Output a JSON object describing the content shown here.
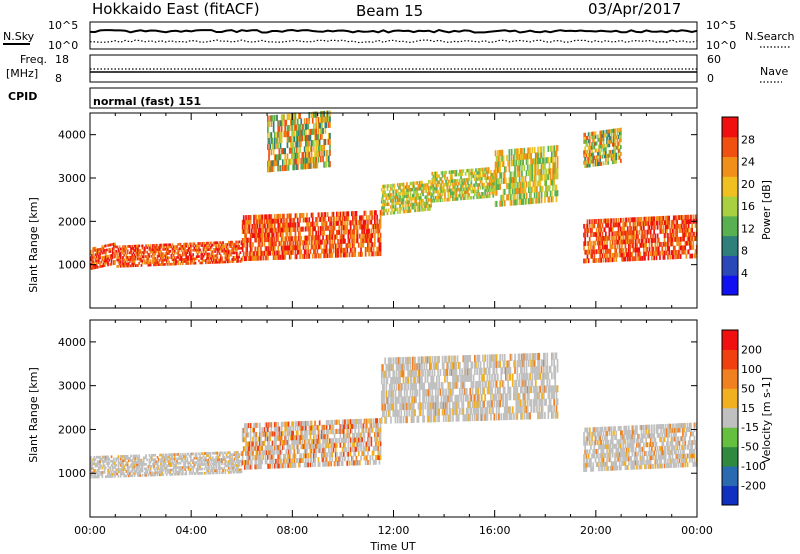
{
  "header": {
    "title": "Hokkaido East (fitACF)",
    "beam": "Beam 15",
    "date": "03/Apr/2017"
  },
  "top_panels": {
    "noise_left": "N.Sky",
    "noise_right": "N.Search",
    "noise_ticks_left": [
      "10^5",
      "10^0"
    ],
    "noise_ticks_right": [
      "10^5",
      "10^0"
    ],
    "freq_label": "Freq.",
    "freq_unit": "[MHz]",
    "freq_ticks": [
      "18",
      "8"
    ],
    "nave_label": "Nave",
    "nave_ticks": [
      "60",
      "0"
    ],
    "cpid_label": "CPID",
    "cpid_value": "normal (fast) 151"
  },
  "chart_data": [
    {
      "type": "heatmap",
      "title": "",
      "xlabel": "Time UT",
      "ylabel": "Slant Range [km]",
      "x_range": [
        "00:00",
        "24:00"
      ],
      "x_ticks": [
        "00:00",
        "04:00",
        "08:00",
        "12:00",
        "16:00",
        "20:00",
        "00:00"
      ],
      "y_range": [
        0,
        4500
      ],
      "y_ticks": [
        1000,
        2000,
        3000,
        4000
      ],
      "colorbar_label": "Power [dB]",
      "colorbar_ticks": [
        "28",
        "24",
        "20",
        "16",
        "12",
        "8",
        "4"
      ],
      "colors": [
        "#1010f0",
        "#2a48b8",
        "#2f7f7a",
        "#58b050",
        "#a8d040",
        "#f0c020",
        "#f09018",
        "#f05010",
        "#f01010"
      ],
      "bands": [
        {
          "t0": 0,
          "t1": 1,
          "r0": 950,
          "r1": 1450,
          "level": "strong"
        },
        {
          "t0": 1,
          "t1": 6,
          "r0": 1000,
          "r1": 1500,
          "level": "strong"
        },
        {
          "t0": 6,
          "t1": 11.5,
          "r0": 1150,
          "r1": 2200,
          "level": "strong"
        },
        {
          "t0": 11.5,
          "t1": 13.5,
          "r0": 2200,
          "r1": 2900,
          "level": "medium"
        },
        {
          "t0": 13.5,
          "t1": 16,
          "r0": 2500,
          "r1": 3200,
          "level": "medium"
        },
        {
          "t0": 16,
          "t1": 18.5,
          "r0": 2400,
          "r1": 3700,
          "level": "medium"
        },
        {
          "t0": 19.5,
          "t1": 24,
          "r0": 1100,
          "r1": 2100,
          "level": "strong"
        },
        {
          "t0": 7,
          "t1": 9.5,
          "r0": 3200,
          "r1": 4500,
          "level": "weak"
        },
        {
          "t0": 19.5,
          "t1": 21,
          "r0": 3300,
          "r1": 4100,
          "level": "weak"
        }
      ]
    },
    {
      "type": "heatmap",
      "title": "",
      "xlabel": "Time UT",
      "ylabel": "Slant Range [km]",
      "x_range": [
        "00:00",
        "24:00"
      ],
      "x_ticks": [
        "00:00",
        "04:00",
        "08:00",
        "12:00",
        "16:00",
        "20:00",
        "00:00"
      ],
      "y_range": [
        0,
        4500
      ],
      "y_ticks": [
        1000,
        2000,
        3000,
        4000
      ],
      "colorbar_label": "Velocity [m s-1]",
      "colorbar_ticks": [
        "200",
        "100",
        "50",
        "15",
        "-15",
        "-50",
        "-100",
        "-200"
      ],
      "colors": [
        "#1030c0",
        "#2a6ab0",
        "#2f8a40",
        "#66c040",
        "#c0c0c0",
        "#f0b020",
        "#f08020",
        "#f04010",
        "#f01010"
      ],
      "bands": [
        {
          "t0": 0,
          "t1": 6,
          "r0": 950,
          "r1": 1450,
          "level": "ground"
        },
        {
          "t0": 6,
          "t1": 11.5,
          "r0": 1150,
          "r1": 2200,
          "level": "mixed"
        },
        {
          "t0": 11.5,
          "t1": 18.5,
          "r0": 2200,
          "r1": 3700,
          "level": "ground"
        },
        {
          "t0": 19.5,
          "t1": 24,
          "r0": 1100,
          "r1": 2100,
          "level": "ground"
        }
      ]
    }
  ]
}
